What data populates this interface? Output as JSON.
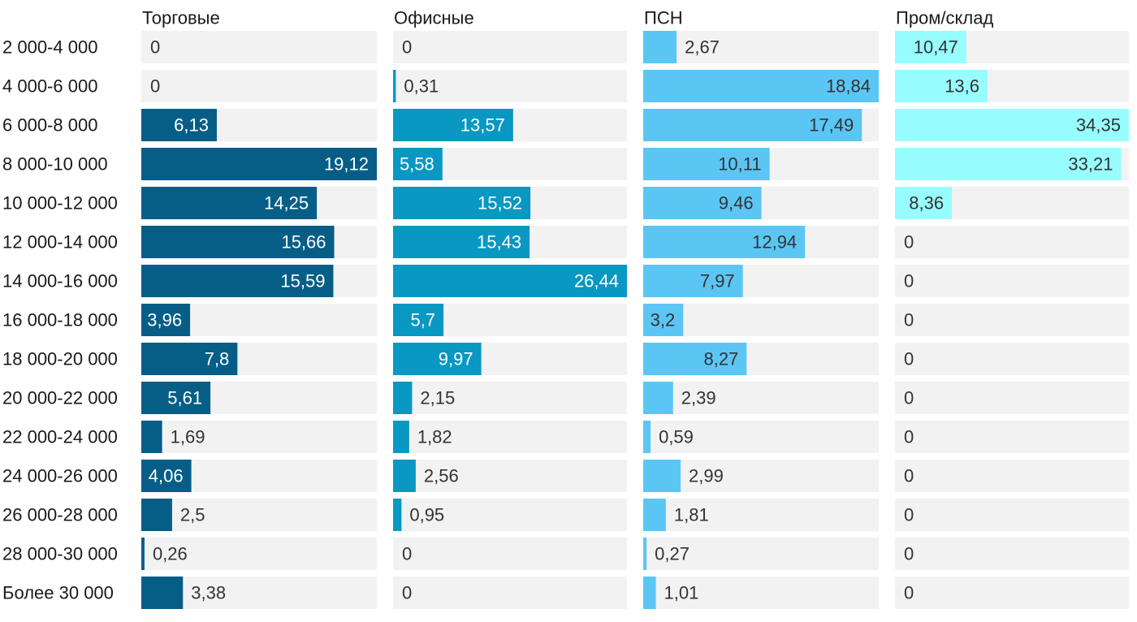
{
  "chart_data": {
    "type": "bar",
    "orientation": "horizontal",
    "layout": "small-multiples",
    "categories": [
      "2 000-4 000",
      "4 000-6 000",
      "6 000-8 000",
      "8 000-10 000",
      "10 000-12 000",
      "12 000-14 000",
      "14 000-16 000",
      "16 000-18 000",
      "18 000-20 000",
      "20 000-22 000",
      "22 000-24 000",
      "24 000-26 000",
      "26 000-28 000",
      "28 000-30 000",
      "Более 30 000"
    ],
    "series": [
      {
        "name": "Торговые",
        "color": "#065e87",
        "values": [
          0,
          0,
          6.13,
          19.12,
          14.25,
          15.66,
          15.59,
          3.96,
          7.8,
          5.61,
          1.69,
          4.06,
          2.5,
          0.26,
          3.38
        ],
        "labels": [
          "0",
          "0",
          "6,13",
          "19,12",
          "14,25",
          "15,66",
          "15,59",
          "3,96",
          "7,8",
          "5,61",
          "1,69",
          "4,06",
          "2,5",
          "0,26",
          "3,38"
        ]
      },
      {
        "name": "Офисные",
        "color": "#0898c2",
        "values": [
          0,
          0.31,
          13.57,
          5.58,
          15.52,
          15.43,
          26.44,
          5.7,
          9.97,
          2.15,
          1.82,
          2.56,
          0.95,
          0,
          0
        ],
        "labels": [
          "0",
          "0,31",
          "13,57",
          "5,58",
          "15,52",
          "15,43",
          "26,44",
          "5,7",
          "9,97",
          "2,15",
          "1,82",
          "2,56",
          "0,95",
          "0",
          "0"
        ]
      },
      {
        "name": "ПСН",
        "color": "#5bc6f4",
        "values": [
          2.67,
          18.84,
          17.49,
          10.11,
          9.46,
          12.94,
          7.97,
          3.2,
          8.27,
          2.39,
          0.59,
          2.99,
          1.81,
          0.27,
          1.01
        ],
        "labels": [
          "2,67",
          "18,84",
          "17,49",
          "10,11",
          "9,46",
          "12,94",
          "7,97",
          "3,2",
          "8,27",
          "2,39",
          "0,59",
          "2,99",
          "1,81",
          "0,27",
          "1,01"
        ]
      },
      {
        "name": "Пром/склад",
        "color": "#98fdfe",
        "values": [
          10.47,
          13.6,
          34.35,
          33.21,
          8.36,
          0,
          0,
          0,
          0,
          0,
          0,
          0,
          0,
          0,
          0
        ],
        "labels": [
          "10,47",
          "13,6",
          "34,35",
          "33,21",
          "8,36",
          "0",
          "0",
          "0",
          "0",
          "0",
          "0",
          "0",
          "0",
          "0",
          "0"
        ]
      }
    ],
    "xlim": [
      0,
      null
    ],
    "background_track_color": "#f2f2f2",
    "grid": false,
    "legend": "none"
  }
}
